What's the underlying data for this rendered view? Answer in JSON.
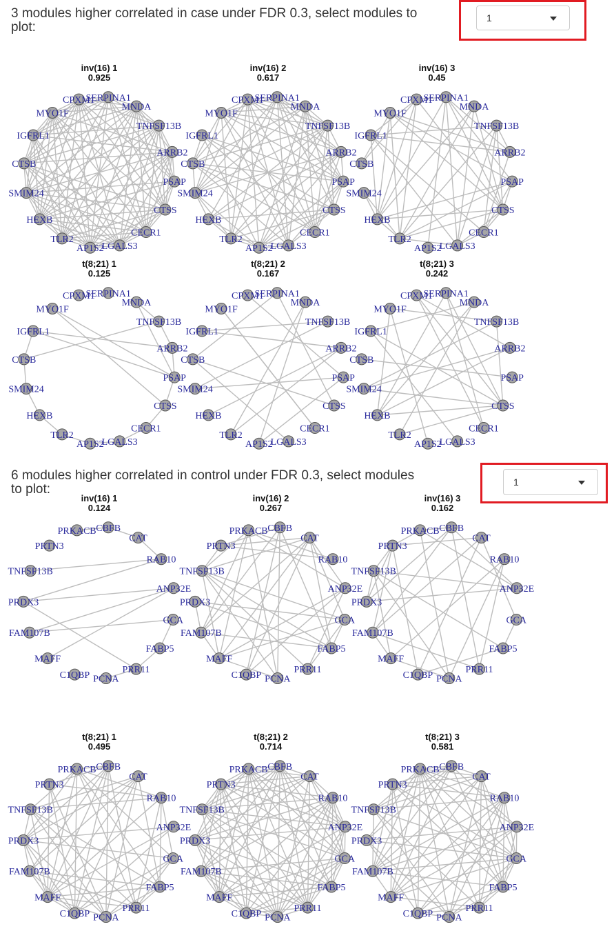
{
  "sections": [
    {
      "heading": "3 modules higher correlated in case under FDR 0.3, select modules to plot:",
      "dropdown_value": "1",
      "nodes": [
        "SERPINA1",
        "MNDA",
        "TNFSF13B",
        "ARRB2",
        "PSAP",
        "CTSS",
        "CECR1",
        "LGALS3",
        "AP1S2",
        "TLR2",
        "HEXB",
        "SMIM24",
        "CTSB",
        "IGFRL1",
        "MYO1F",
        "CPXM1"
      ],
      "panels": [
        {
          "title": "inv(16) 1",
          "score": "0.925"
        },
        {
          "title": "inv(16) 2",
          "score": "0.617"
        },
        {
          "title": "inv(16) 3",
          "score": "0.45"
        },
        {
          "title": "t(8;21) 1",
          "score": "0.125"
        },
        {
          "title": "t(8;21) 2",
          "score": "0.167"
        },
        {
          "title": "t(8;21) 3",
          "score": "0.242"
        }
      ]
    },
    {
      "heading": "6 modules higher correlated in control under FDR 0.3, select modules to plot:",
      "dropdown_value": "1",
      "nodes": [
        "CBFB",
        "CAT",
        "RAB10",
        "ANP32E",
        "GCA",
        "FABP5",
        "PRR11",
        "PCNA",
        "C1QBP",
        "MAFF",
        "FAM107B",
        "PRDX3",
        "TNFSF13B",
        "PRTN3",
        "PRKACB"
      ],
      "panels": [
        {
          "title": "inv(16) 1",
          "score": "0.124"
        },
        {
          "title": "inv(16) 2",
          "score": "0.267"
        },
        {
          "title": "inv(16) 3",
          "score": "0.162"
        },
        {
          "title": "t(8;21) 1",
          "score": "0.495"
        },
        {
          "title": "t(8;21) 2",
          "score": "0.714"
        },
        {
          "title": "t(8;21) 3",
          "score": "0.581"
        }
      ]
    }
  ],
  "colors": {
    "node_fill": "#a6a6a6",
    "node_stroke": "#555555",
    "edge": "#bdbdbd",
    "label": "#2a2a9c",
    "highlight_border": "#e11b22"
  }
}
